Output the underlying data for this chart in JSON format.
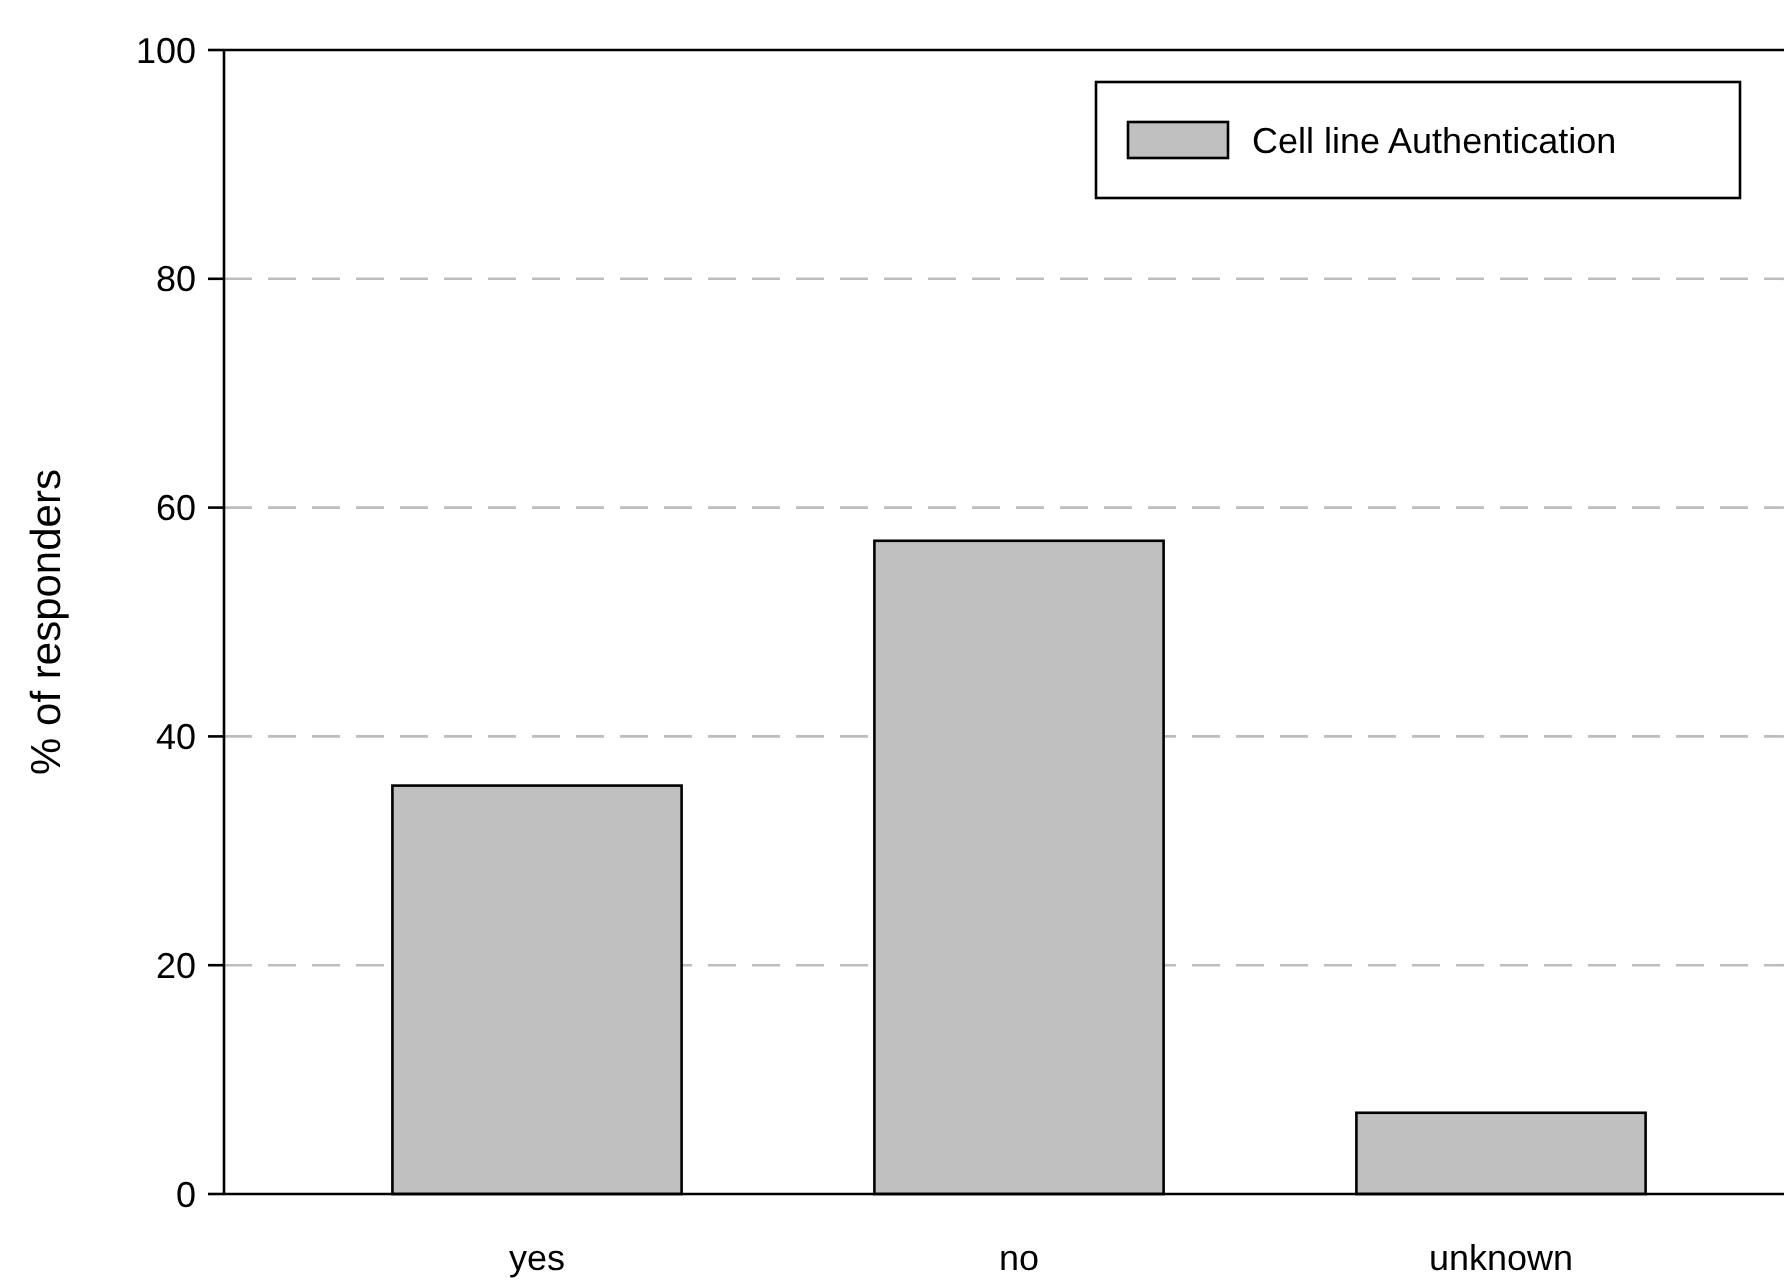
{
  "chart_data": {
    "type": "bar",
    "ylabel": "% of responders",
    "categories": [
      "yes",
      "no",
      "unknown"
    ],
    "series": [
      {
        "name": "Cell line Authentication",
        "color": "#c0c0c0",
        "values": [
          35.7,
          57.1,
          7.1
        ]
      }
    ],
    "ylim": [
      0,
      100
    ],
    "yticks": [
      0,
      20,
      40,
      60,
      80,
      100
    ],
    "grid": "y",
    "legend": "top right"
  }
}
